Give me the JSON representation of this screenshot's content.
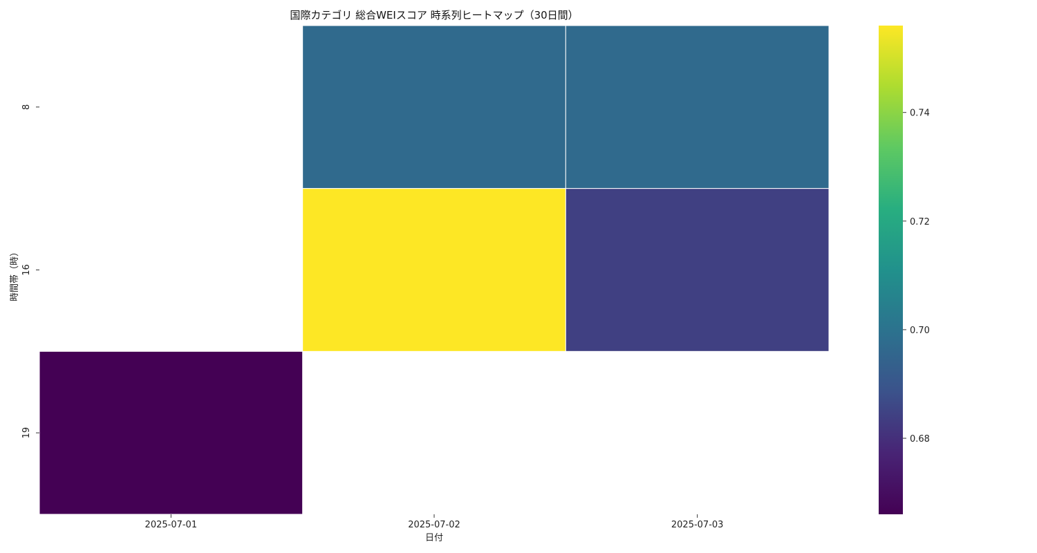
{
  "chart_data": {
    "type": "heatmap",
    "title": "国際カテゴリ 総合WEIスコア 時系列ヒートマップ（30日間）",
    "xlabel": "日付",
    "ylabel": "時間帯（時）",
    "x": [
      "2025-07-01",
      "2025-07-02",
      "2025-07-03"
    ],
    "y": [
      "8",
      "16",
      "19"
    ],
    "values": [
      [
        null,
        0.697,
        0.697
      ],
      [
        null,
        0.756,
        0.684
      ],
      [
        0.666,
        null,
        null
      ]
    ],
    "colormap": "viridis",
    "vmin": 0.666,
    "vmax": 0.756,
    "colorbar_ticks": [
      "0.68",
      "0.70",
      "0.72",
      "0.74"
    ],
    "grid": false,
    "legend": "colorbar-right"
  }
}
